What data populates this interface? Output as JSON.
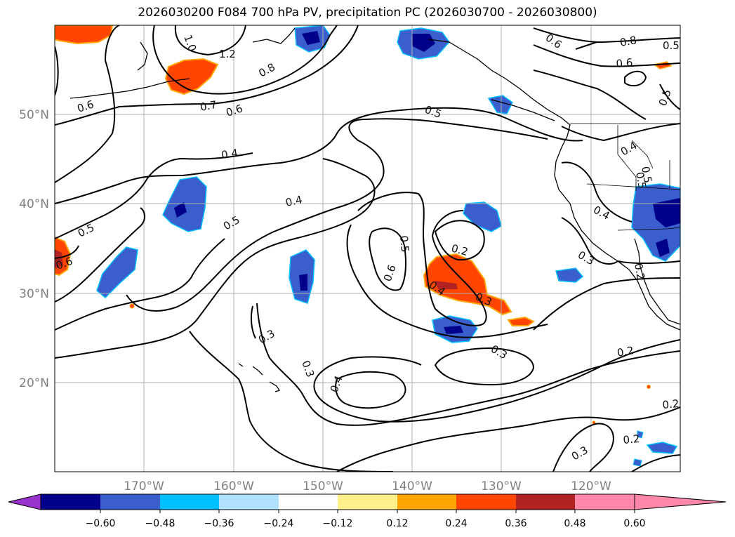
{
  "title": "2026030200 F084 700 hPa PV, precipitation PC (2026030700 - 2026030800)",
  "lat_labels": [
    "50°N",
    "40°N",
    "30°N",
    "20°N"
  ],
  "lon_labels": [
    "170°W",
    "160°W",
    "150°W",
    "140°W",
    "130°W",
    "120°W"
  ],
  "contour_labels": [
    "1.0",
    "1.2",
    "0.8",
    "0.6",
    "0.7",
    "0.6",
    "0.5",
    "0.6",
    "0.8",
    "0.5",
    "0.6",
    "0.5",
    "0.4",
    "0.4",
    "0.5",
    "0.5",
    "0.5",
    "0.4",
    "0.2",
    "0.6",
    "0.4",
    "0.3",
    "0.5",
    "0.3",
    "0.3",
    "0.2",
    "0.3",
    "0.4",
    "0.2",
    "0.3",
    "0.2",
    "0.2",
    "0.6",
    "0.5",
    "0.3",
    "0.4"
  ],
  "colorbar": {
    "ticks": [
      "−0.60",
      "−0.48",
      "−0.36",
      "−0.24",
      "−0.12",
      "0.12",
      "0.24",
      "0.36",
      "0.48",
      "0.60"
    ],
    "colors": [
      "#9932cc",
      "#00008b",
      "#3a5fcd",
      "#00bfff",
      "#b0e2ff",
      "#ffffff",
      "#fff08c",
      "#ffa500",
      "#ff4500",
      "#b22222",
      "#ff88aa"
    ]
  }
}
